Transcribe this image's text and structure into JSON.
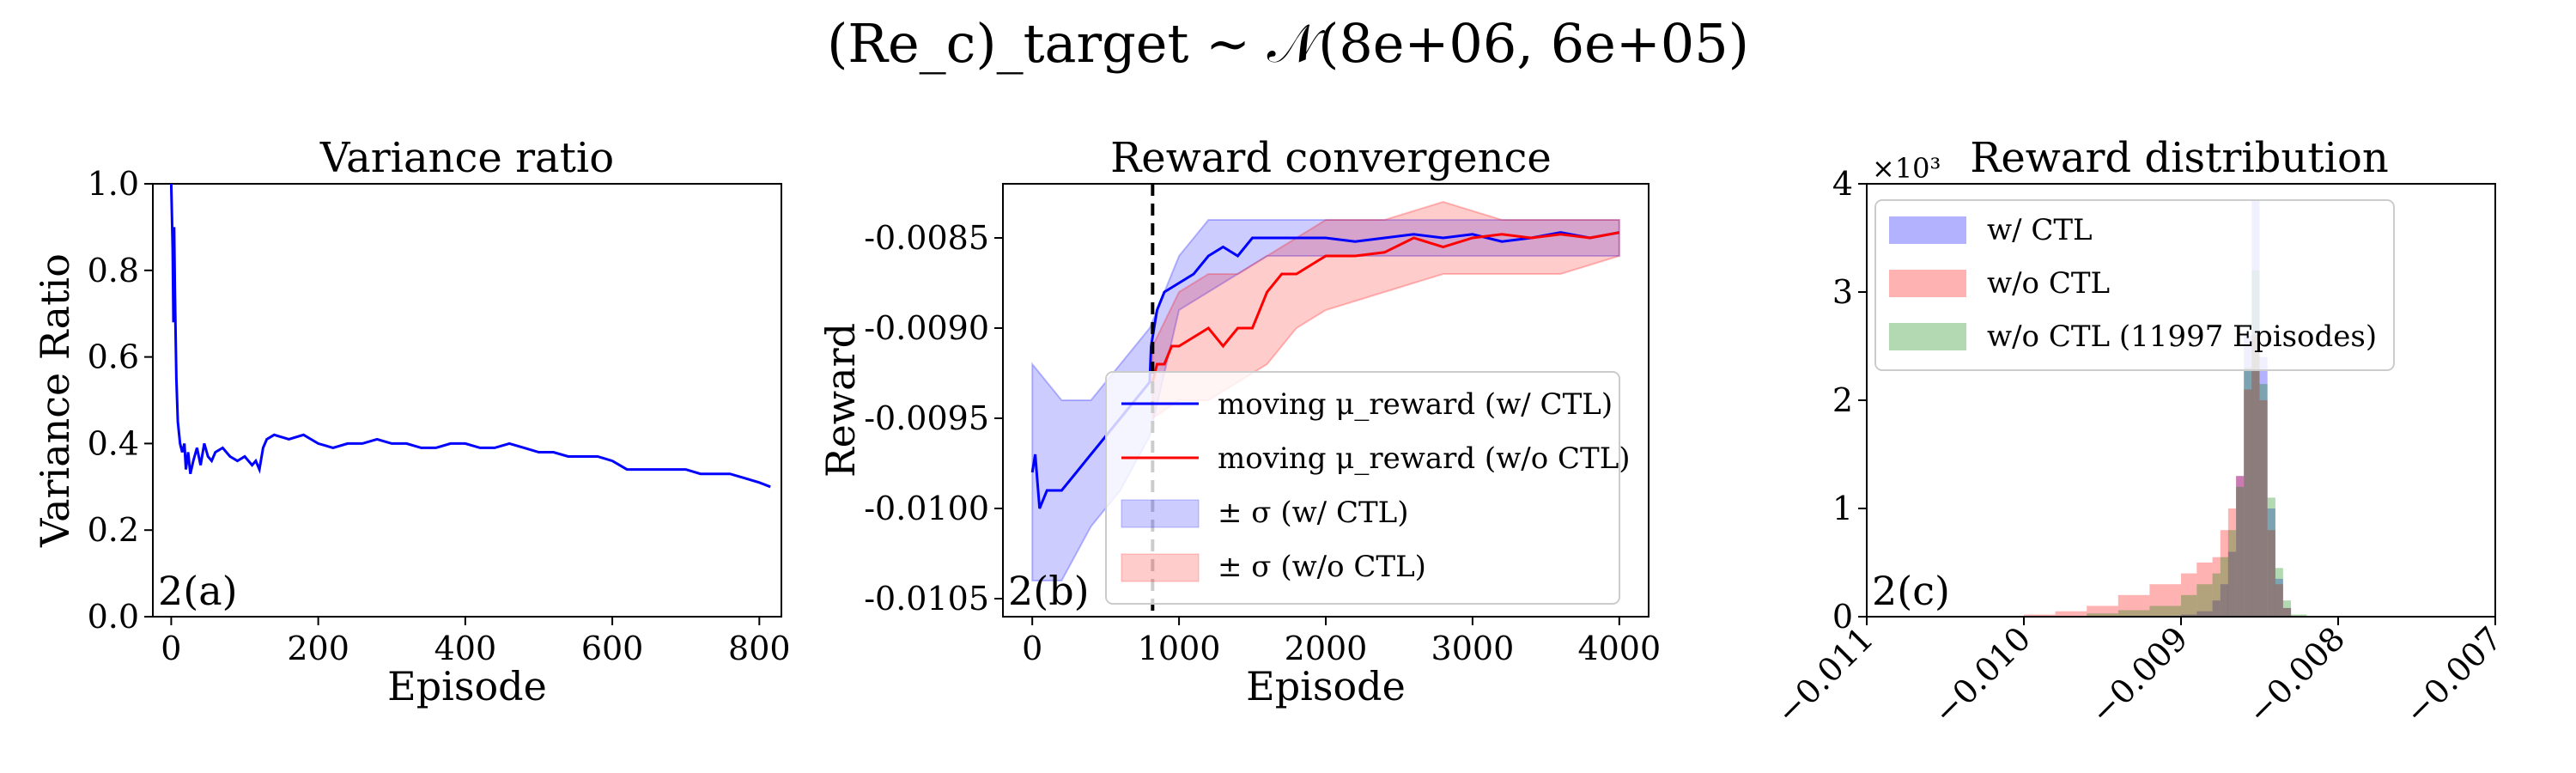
{
  "figure": {
    "supertitle": "(Re_c)_target ~ 𝒩(8e+06, 6e+05)"
  },
  "chart_data": [
    {
      "id": "a",
      "type": "line",
      "title": "Variance ratio",
      "xlabel": "Episode",
      "ylabel": "Variance Ratio",
      "panel_label": "2(a)",
      "xlim": [
        -25,
        830
      ],
      "ylim": [
        0.0,
        1.0
      ],
      "xticks": [
        "0",
        "200",
        "400",
        "600",
        "800"
      ],
      "yticks": [
        "0.0",
        "0.2",
        "0.4",
        "0.6",
        "0.8",
        "1.0"
      ],
      "color": "#0000ff",
      "series": [
        {
          "name": "variance ratio",
          "x": [
            0,
            2,
            3,
            4,
            5,
            7,
            9,
            12,
            15,
            18,
            20,
            23,
            26,
            30,
            35,
            40,
            45,
            50,
            55,
            60,
            70,
            80,
            90,
            100,
            110,
            115,
            120,
            125,
            130,
            140,
            160,
            180,
            200,
            220,
            240,
            260,
            280,
            300,
            320,
            340,
            360,
            380,
            400,
            420,
            440,
            460,
            480,
            500,
            520,
            540,
            560,
            580,
            600,
            610,
            620,
            640,
            660,
            680,
            700,
            720,
            740,
            760,
            780,
            800,
            815
          ],
          "y": [
            1.0,
            0.85,
            0.68,
            0.9,
            0.75,
            0.55,
            0.45,
            0.4,
            0.38,
            0.4,
            0.34,
            0.38,
            0.33,
            0.36,
            0.39,
            0.35,
            0.4,
            0.37,
            0.36,
            0.38,
            0.39,
            0.37,
            0.36,
            0.37,
            0.35,
            0.36,
            0.34,
            0.39,
            0.41,
            0.42,
            0.41,
            0.42,
            0.4,
            0.39,
            0.4,
            0.4,
            0.41,
            0.4,
            0.4,
            0.39,
            0.39,
            0.4,
            0.4,
            0.39,
            0.39,
            0.4,
            0.39,
            0.38,
            0.38,
            0.37,
            0.37,
            0.37,
            0.36,
            0.35,
            0.34,
            0.34,
            0.34,
            0.34,
            0.34,
            0.33,
            0.33,
            0.33,
            0.32,
            0.31,
            0.3
          ]
        }
      ]
    },
    {
      "id": "b",
      "type": "line",
      "title": "Reward convergence",
      "xlabel": "Episode",
      "ylabel": "Reward",
      "panel_label": "2(b)",
      "xlim": [
        -200,
        4200
      ],
      "ylim": [
        -0.0106,
        -0.0082
      ],
      "xticks": [
        "0",
        "1000",
        "2000",
        "3000",
        "4000"
      ],
      "yticks": [
        "-0.0085",
        "-0.0090",
        "-0.0095",
        "-0.0100",
        "-0.0105"
      ],
      "vline_x": 820,
      "series": [
        {
          "name": "moving μ_reward (w/ CTL)",
          "color": "#0000ff",
          "x": [
            0,
            20,
            50,
            100,
            200,
            300,
            400,
            500,
            600,
            700,
            800,
            810,
            830,
            850,
            900,
            1000,
            1100,
            1200,
            1300,
            1400,
            1500,
            1600,
            1800,
            2000,
            2200,
            2400,
            2600,
            2800,
            3000,
            3200,
            3400,
            3600,
            3800,
            4000
          ],
          "y": [
            -0.0098,
            -0.0097,
            -0.01,
            -0.0099,
            -0.0099,
            -0.0098,
            -0.0097,
            -0.0096,
            -0.0095,
            -0.0094,
            -0.0093,
            -0.0091,
            -0.009,
            -0.0089,
            -0.0088,
            -0.00875,
            -0.0087,
            -0.0086,
            -0.00855,
            -0.0086,
            -0.0085,
            -0.0085,
            -0.0085,
            -0.0085,
            -0.00852,
            -0.0085,
            -0.00848,
            -0.0085,
            -0.00848,
            -0.00852,
            -0.0085,
            -0.00847,
            -0.0085,
            -0.00847
          ]
        },
        {
          "name": "moving μ_reward (w/o CTL)",
          "color": "#ff0000",
          "x": [
            820,
            850,
            900,
            950,
            1000,
            1100,
            1200,
            1300,
            1400,
            1500,
            1550,
            1600,
            1700,
            1800,
            2000,
            2200,
            2400,
            2600,
            2800,
            3000,
            3200,
            3400,
            3600,
            3800,
            4000
          ],
          "y": [
            -0.0093,
            -0.0092,
            -0.0092,
            -0.0091,
            -0.0091,
            -0.00905,
            -0.009,
            -0.0091,
            -0.009,
            -0.009,
            -0.0089,
            -0.0088,
            -0.0087,
            -0.0087,
            -0.0086,
            -0.0086,
            -0.00858,
            -0.0085,
            -0.00855,
            -0.0085,
            -0.00848,
            -0.0085,
            -0.00848,
            -0.0085,
            -0.00847
          ]
        },
        {
          "name": "± σ (w/ CTL)",
          "color": "#0000ff",
          "alpha": 0.2,
          "x": [
            0,
            200,
            400,
            600,
            800,
            1000,
            1200,
            1400,
            1600,
            2000,
            2400,
            2800,
            3200,
            3600,
            4000
          ],
          "upper": [
            -0.0092,
            -0.0094,
            -0.0094,
            -0.0092,
            -0.009,
            -0.0086,
            -0.0084,
            -0.0084,
            -0.0084,
            -0.0084,
            -0.0084,
            -0.0084,
            -0.0084,
            -0.0084,
            -0.0084
          ],
          "lower": [
            -0.0104,
            -0.0104,
            -0.0101,
            -0.0099,
            -0.0096,
            -0.0089,
            -0.0088,
            -0.0087,
            -0.0086,
            -0.0086,
            -0.0086,
            -0.0086,
            -0.0086,
            -0.0086,
            -0.0086
          ]
        },
        {
          "name": "± σ (w/o CTL)",
          "color": "#ff0000",
          "alpha": 0.2,
          "x": [
            820,
            1000,
            1200,
            1400,
            1600,
            1800,
            2000,
            2400,
            2800,
            3200,
            3600,
            4000
          ],
          "upper": [
            -0.0091,
            -0.0088,
            -0.0087,
            -0.0087,
            -0.0086,
            -0.0085,
            -0.0084,
            -0.0084,
            -0.0083,
            -0.0084,
            -0.0084,
            -0.0084
          ],
          "lower": [
            -0.0095,
            -0.0094,
            -0.0094,
            -0.0093,
            -0.0092,
            -0.009,
            -0.0089,
            -0.0088,
            -0.0087,
            -0.0087,
            -0.0087,
            -0.0086
          ]
        }
      ]
    },
    {
      "id": "c",
      "type": "bar",
      "title": "Reward distribution",
      "panel_label": "2(c)",
      "xlim": [
        -0.011,
        -0.007
      ],
      "ylim": [
        0,
        4
      ],
      "xticks": [
        "−0.011",
        "−0.010",
        "−0.009",
        "−0.008",
        "−0.007"
      ],
      "yticks": [
        "0",
        "1",
        "2",
        "3",
        "4"
      ],
      "y_multiplier": "×10³",
      "bin_edges": [
        -0.01,
        -0.0098,
        -0.0096,
        -0.0094,
        -0.0092,
        -0.009,
        -0.0089,
        -0.0088,
        -0.00875,
        -0.0087,
        -0.00865,
        -0.0086,
        -0.00855,
        -0.0085,
        -0.00845,
        -0.0084,
        -0.00835,
        -0.0083,
        -0.0082
      ],
      "series": [
        {
          "name": "w/ CTL",
          "color": "#0000ff",
          "values": [
            0,
            0,
            0,
            0,
            0,
            0.02,
            0.05,
            0.15,
            0.3,
            0.6,
            1.3,
            2.6,
            3.85,
            2.4,
            1.0,
            0.35,
            0.08,
            0
          ]
        },
        {
          "name": "w/o CTL",
          "color": "#ff0000",
          "values": [
            0.02,
            0.05,
            0.1,
            0.2,
            0.3,
            0.4,
            0.5,
            0.55,
            0.8,
            1.0,
            1.3,
            2.1,
            2.6,
            2.0,
            0.8,
            0.3,
            0.08,
            0
          ]
        },
        {
          "name": "w/o CTL (11997 Episodes)",
          "color": "#008000",
          "values": [
            0,
            0,
            0.03,
            0.06,
            0.1,
            0.2,
            0.3,
            0.4,
            0.55,
            0.8,
            1.2,
            2.3,
            3.2,
            2.15,
            1.1,
            0.45,
            0.15,
            0.02
          ]
        }
      ]
    }
  ]
}
